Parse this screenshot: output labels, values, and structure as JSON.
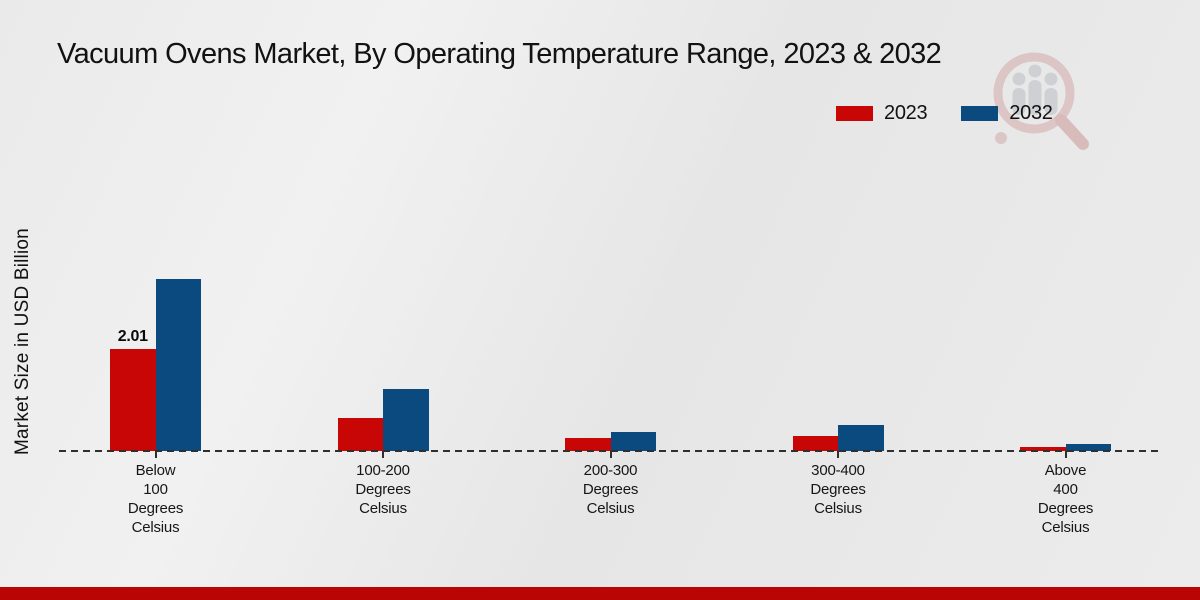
{
  "title": "Vacuum Ovens Market, By Operating Temperature Range, 2023 & 2032",
  "ylabel": "Market Size in USD Billion",
  "legend": {
    "items": [
      {
        "label": "2023",
        "color": "#c90606"
      },
      {
        "label": "2032",
        "color": "#0b4a7f"
      }
    ]
  },
  "watermark_icon": "magnifier-bar-chart-logo",
  "footer": {
    "band_color": "#b90504"
  },
  "chart_data": {
    "type": "bar",
    "title": "Vacuum Ovens Market, By Operating Temperature Range, 2023 & 2032",
    "xlabel": "",
    "ylabel": "Market Size in USD Billion",
    "categories": [
      "Below\n100\nDegrees\nCelsius",
      "100-200\nDegrees\nCelsius",
      "200-300\nDegrees\nCelsius",
      "300-400\nDegrees\nCelsius",
      "Above\n400\nDegrees\nCelsius"
    ],
    "series": [
      {
        "name": "2023",
        "color": "#c90606",
        "values": [
          2.01,
          0.65,
          0.26,
          0.3,
          0.08
        ],
        "bar_labels": [
          "2.01",
          "",
          "",
          "",
          ""
        ]
      },
      {
        "name": "2032",
        "color": "#0b4a7f",
        "values": [
          3.39,
          1.22,
          0.37,
          0.51,
          0.14
        ],
        "bar_labels": [
          "",
          "",
          "",
          "",
          ""
        ]
      }
    ],
    "ylim": [
      0,
      4
    ],
    "y_axis_ticks_visible": false,
    "grid": false,
    "baseline_style": "dashed",
    "legend_position": "top-right"
  }
}
